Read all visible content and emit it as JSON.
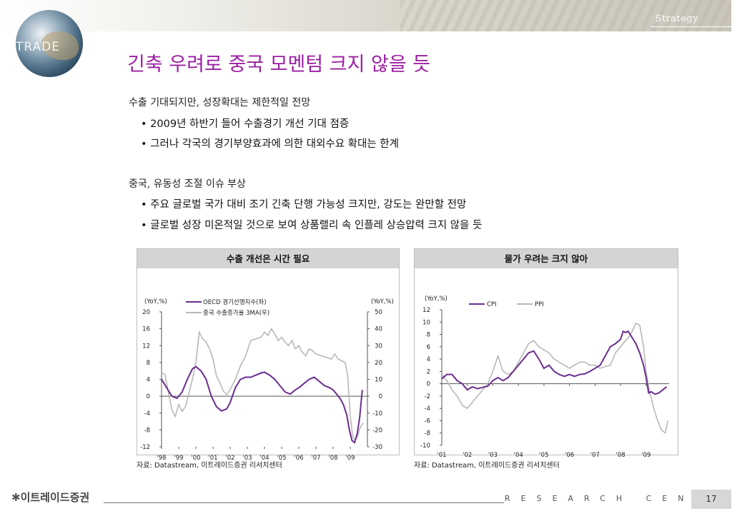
{
  "header": {
    "section": "Strategy",
    "logo_text": "TRADE"
  },
  "title": "긴축 우려로 중국 모멘텀 크지 않을 듯",
  "sections": [
    {
      "heading": "수출 기대되지만, 성장확대는 제한적일 전망",
      "bullets": [
        "2009년 하반기 들어 수출경기 개선 기대 점증",
        "그러나 각국의 경기부양효과에 의한 대외수요 확대는 한계"
      ]
    },
    {
      "heading": "중국, 유동성 조절 이슈 부상",
      "bullets": [
        "주요 글로벌 국가 대비 조기 긴축 단행 가능성 크지만,  강도는 완만할 전망",
        "글로벌 성장 미온적일 것으로 보여 상품랠리 속 인플레 상승압력 크지 않을 듯"
      ]
    }
  ],
  "charts": [
    {
      "panel_title": "수출 개선은 시간 필요",
      "source": "자료: Datastream, 이트레이드증권 리서치센터"
    },
    {
      "panel_title": "물가 우려는 크지 않아",
      "source": "자료: Datastream, 이트레이드증권 리서치센터"
    }
  ],
  "chart_data": [
    {
      "type": "line",
      "title": "수출 개선은 시간 필요",
      "ylabel_left": "(YoY,%)",
      "ylabel_right": "(YoY,%)",
      "ylim_left": [
        -12,
        20
      ],
      "ylim_right": [
        -30,
        50
      ],
      "yticks_left": [
        20,
        16,
        12,
        8,
        4,
        0,
        -4,
        -8,
        -12
      ],
      "yticks_right": [
        50,
        40,
        30,
        20,
        10,
        0,
        -10,
        -20,
        -30
      ],
      "xlim": [
        1998.0,
        2010.0
      ],
      "xtick_labels": [
        "'98",
        "'99",
        "'00",
        "'01",
        "'02",
        "'03",
        "'04",
        "'05",
        "'06",
        "'07",
        "'08",
        "'09"
      ],
      "legend": "top-left",
      "colors": {
        "primary": "#6a2d8f",
        "secondary": "#b8b8b8"
      },
      "series": [
        {
          "name": "OECD 경기선행지수(좌)",
          "axis": "left",
          "x": [
            1998.0,
            1998.3,
            1998.6,
            1998.9,
            1999.2,
            1999.5,
            1999.8,
            2000.0,
            2000.3,
            2000.6,
            2000.9,
            2001.2,
            2001.5,
            2001.8,
            2002.0,
            2002.3,
            2002.6,
            2002.9,
            2003.2,
            2003.5,
            2003.8,
            2004.0,
            2004.3,
            2004.6,
            2004.9,
            2005.2,
            2005.5,
            2005.8,
            2006.0,
            2006.3,
            2006.6,
            2006.9,
            2007.2,
            2007.5,
            2007.8,
            2008.0,
            2008.2,
            2008.4,
            2008.6,
            2008.8,
            2008.95,
            2009.1,
            2009.25,
            2009.4,
            2009.55,
            2009.7
          ],
          "y": [
            4,
            2,
            0,
            -0.5,
            1,
            4,
            6.5,
            7,
            6,
            4,
            0,
            -2.5,
            -3.5,
            -3,
            -1.5,
            2,
            4,
            4.5,
            4.5,
            5,
            5.5,
            5.7,
            5,
            4,
            2.5,
            1,
            0.5,
            1.5,
            2,
            3,
            4,
            4.5,
            3.5,
            2.5,
            2,
            1.5,
            0.5,
            -0.5,
            -2,
            -4.5,
            -8,
            -10.5,
            -11,
            -9,
            -5,
            1.5
          ]
        },
        {
          "name": "중국 수출증가율 3MA(우)",
          "axis": "right",
          "x": [
            1998.0,
            1998.2,
            1998.4,
            1998.6,
            1998.8,
            1999.0,
            1999.2,
            1999.4,
            1999.6,
            1999.8,
            2000.0,
            2000.2,
            2000.4,
            2000.6,
            2000.8,
            2001.0,
            2001.2,
            2001.4,
            2001.6,
            2001.8,
            2002.0,
            2002.3,
            2002.6,
            2002.9,
            2003.2,
            2003.5,
            2003.8,
            2004.0,
            2004.2,
            2004.4,
            2004.6,
            2004.8,
            2005.0,
            2005.2,
            2005.4,
            2005.6,
            2005.8,
            2006.0,
            2006.2,
            2006.4,
            2006.6,
            2006.8,
            2007.0,
            2007.3,
            2007.6,
            2007.9,
            2008.1,
            2008.3,
            2008.5,
            2008.7,
            2008.85,
            2009.0,
            2009.15,
            2009.3,
            2009.45,
            2009.6,
            2009.75
          ],
          "y": [
            14,
            13,
            2,
            -8,
            -12,
            -5,
            -9,
            -6,
            2,
            10,
            20,
            38,
            34,
            32,
            28,
            22,
            12,
            8,
            3,
            1,
            4,
            10,
            18,
            24,
            33,
            34,
            35,
            38,
            36,
            40,
            37,
            33,
            35,
            32,
            30,
            33,
            28,
            30,
            26,
            24,
            28,
            27,
            25,
            24,
            23,
            22,
            25,
            22,
            21,
            20,
            12,
            -12,
            -24,
            -26,
            -23,
            -18,
            -16
          ]
        }
      ]
    },
    {
      "type": "line",
      "title": "물가 우려는 크지 않아",
      "ylabel": "(YoY,%)",
      "ylim": [
        -10,
        12
      ],
      "yticks": [
        12,
        10,
        8,
        6,
        4,
        2,
        0,
        -2,
        -4,
        -6,
        -8,
        -10
      ],
      "xlim": [
        2001.0,
        2009.9
      ],
      "xtick_labels": [
        "'01",
        "'02",
        "'03",
        "'04",
        "'05",
        "'06",
        "'07",
        "'08",
        "'09"
      ],
      "legend": "top-left",
      "colors": {
        "primary": "#6a2d8f",
        "secondary": "#b8b8b8"
      },
      "series": [
        {
          "name": "CPI",
          "x": [
            2001.0,
            2001.2,
            2001.4,
            2001.6,
            2001.8,
            2002.0,
            2002.2,
            2002.4,
            2002.6,
            2002.8,
            2003.0,
            2003.2,
            2003.4,
            2003.6,
            2003.8,
            2004.0,
            2004.2,
            2004.4,
            2004.6,
            2004.8,
            2005.0,
            2005.2,
            2005.4,
            2005.6,
            2005.8,
            2006.0,
            2006.2,
            2006.4,
            2006.6,
            2006.8,
            2007.0,
            2007.2,
            2007.4,
            2007.6,
            2007.8,
            2008.0,
            2008.1,
            2008.2,
            2008.3,
            2008.45,
            2008.6,
            2008.75,
            2008.9,
            2009.0,
            2009.1,
            2009.2,
            2009.35,
            2009.5,
            2009.65,
            2009.8
          ],
          "y": [
            0.8,
            1.5,
            1.5,
            0.5,
            0,
            -1,
            -0.5,
            -0.8,
            -0.6,
            -0.4,
            0.5,
            1,
            0.5,
            1,
            2,
            3,
            4,
            5,
            5.3,
            4,
            2.5,
            3,
            2,
            1.5,
            1.2,
            1.5,
            1.2,
            1.5,
            1.6,
            2,
            2.5,
            3,
            4.5,
            6,
            6.5,
            7.2,
            8.5,
            8.3,
            8.5,
            7.5,
            6.5,
            5,
            3,
            1,
            -1.5,
            -1.3,
            -1.7,
            -1.5,
            -1,
            -0.5
          ]
        },
        {
          "name": "PPI",
          "x": [
            2001.0,
            2001.2,
            2001.4,
            2001.6,
            2001.8,
            2002.0,
            2002.2,
            2002.4,
            2002.6,
            2002.8,
            2003.0,
            2003.2,
            2003.4,
            2003.6,
            2003.8,
            2004.0,
            2004.2,
            2004.4,
            2004.6,
            2004.8,
            2005.0,
            2005.2,
            2005.4,
            2005.6,
            2005.8,
            2006.0,
            2006.2,
            2006.4,
            2006.6,
            2006.8,
            2007.0,
            2007.2,
            2007.4,
            2007.6,
            2007.8,
            2008.0,
            2008.2,
            2008.4,
            2008.6,
            2008.75,
            2008.9,
            2009.0,
            2009.15,
            2009.3,
            2009.45,
            2009.6,
            2009.75,
            2009.85
          ],
          "y": [
            1.5,
            0.5,
            -1,
            -2,
            -3.5,
            -4,
            -3,
            -2,
            -1,
            0,
            2,
            4.5,
            2,
            1.5,
            2,
            3.5,
            5,
            6.5,
            7,
            6,
            5.5,
            5,
            4,
            3.5,
            3,
            2.5,
            3,
            3.5,
            3.5,
            3,
            3,
            2.5,
            2.8,
            3,
            5,
            6,
            7,
            8,
            9.8,
            9.5,
            6,
            2,
            -1.5,
            -4,
            -6,
            -7.5,
            -8,
            -6
          ]
        }
      ]
    }
  ]
}
